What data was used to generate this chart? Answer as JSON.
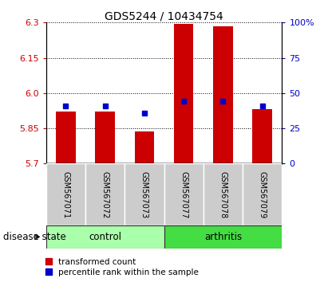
{
  "title": "GDS5244 / 10434754",
  "samples": [
    "GSM567071",
    "GSM567072",
    "GSM567073",
    "GSM567077",
    "GSM567078",
    "GSM567079"
  ],
  "groups": [
    "control",
    "control",
    "control",
    "arthritis",
    "arthritis",
    "arthritis"
  ],
  "red_values": [
    5.92,
    5.92,
    5.835,
    6.295,
    6.285,
    5.93
  ],
  "blue_values": [
    5.945,
    5.945,
    5.915,
    5.965,
    5.965,
    5.945
  ],
  "ymin": 5.7,
  "ymax": 6.3,
  "yticks": [
    5.7,
    5.85,
    6.0,
    6.15,
    6.3
  ],
  "right_yticks": [
    0,
    25,
    50,
    75,
    100
  ],
  "bar_width": 0.5,
  "bar_color": "#cc0000",
  "blue_color": "#0000cc",
  "control_color": "#aaffaa",
  "arthritis_color": "#44dd44",
  "sample_bg_color": "#cccccc",
  "title_fontsize": 10,
  "tick_fontsize": 8,
  "sample_fontsize": 7,
  "label_fontsize": 8.5,
  "legend_fontsize": 7.5
}
